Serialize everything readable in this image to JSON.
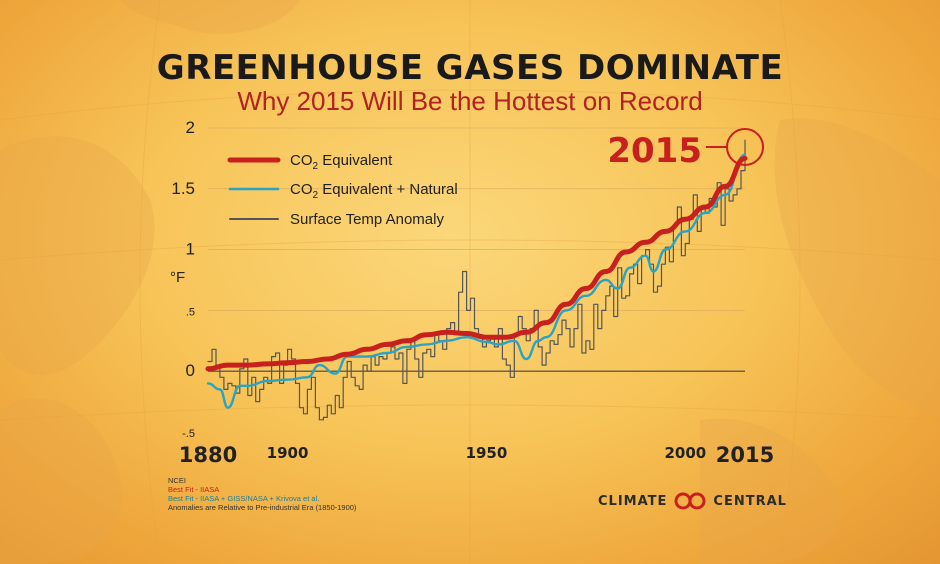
{
  "title": "GREENHOUSE GASES DOMINATE",
  "subtitle": "Why 2015 Will Be the Hottest on Record",
  "colors": {
    "co2": "#c8201e",
    "natural": "#2aa3c4",
    "temp": "#555555",
    "highlight": "#c8201e"
  },
  "sources": {
    "line1": "NCEI",
    "line2": "Best Fit - IIASA",
    "line3": "Best Fit - IIASA + GISS/NASA + Krivova et al.",
    "line4": "Anomalies are Relative to Pre-industrial Era (1850-1900)"
  },
  "brand": {
    "left": "CLIMATE",
    "right": "CENTRAL"
  },
  "chart_data": {
    "type": "line",
    "ylabel": "°F",
    "ylim": [
      -0.5,
      2
    ],
    "xlim": [
      1880,
      2015
    ],
    "yticks": [
      {
        "value": 2,
        "label": "2"
      },
      {
        "value": 1.5,
        "label": "1.5"
      },
      {
        "value": 1,
        "label": "1"
      },
      {
        "value": 0.5,
        "label": ".5"
      },
      {
        "value": 0,
        "label": "0"
      },
      {
        "value": -0.5,
        "label": "-.5"
      }
    ],
    "xticks": [
      {
        "value": 1880,
        "label": "1880"
      },
      {
        "value": 1900,
        "label": "1900"
      },
      {
        "value": 1950,
        "label": "1950"
      },
      {
        "value": 2000,
        "label": "2000"
      },
      {
        "value": 2015,
        "label": "2015"
      }
    ],
    "legend_position": "top-left",
    "annotation": {
      "label": "2015",
      "x": 2015,
      "y": 1.9
    },
    "series": [
      {
        "name": "CO2 Equivalent",
        "name_main": "CO",
        "name_sub": "2",
        "name_rest": " Equivalent",
        "style": "smooth",
        "x": [
          1880,
          1885,
          1890,
          1895,
          1900,
          1905,
          1910,
          1915,
          1920,
          1925,
          1930,
          1935,
          1940,
          1945,
          1950,
          1955,
          1960,
          1965,
          1970,
          1975,
          1980,
          1985,
          1990,
          1995,
          2000,
          2005,
          2010,
          2015
        ],
        "y": [
          0.02,
          0.05,
          0.05,
          0.06,
          0.07,
          0.08,
          0.1,
          0.14,
          0.18,
          0.22,
          0.25,
          0.3,
          0.32,
          0.31,
          0.28,
          0.28,
          0.32,
          0.4,
          0.55,
          0.68,
          0.82,
          0.98,
          1.06,
          1.15,
          1.25,
          1.35,
          1.52,
          1.75
        ]
      },
      {
        "name": "CO2 Equivalent + Natural",
        "name_main": "CO",
        "name_sub": "2",
        "name_rest": " Equivalent + Natural",
        "style": "smooth",
        "x": [
          1880,
          1883,
          1885,
          1888,
          1890,
          1895,
          1900,
          1905,
          1908,
          1912,
          1915,
          1920,
          1925,
          1930,
          1935,
          1940,
          1945,
          1950,
          1953,
          1957,
          1960,
          1963,
          1965,
          1970,
          1975,
          1980,
          1983,
          1986,
          1990,
          1992,
          1995,
          2000,
          2005,
          2010,
          2015
        ],
        "y": [
          -0.1,
          -0.15,
          -0.3,
          -0.12,
          -0.12,
          -0.08,
          -0.07,
          -0.05,
          0.05,
          -0.02,
          0.12,
          0.12,
          0.15,
          0.2,
          0.22,
          0.25,
          0.28,
          0.24,
          0.22,
          0.25,
          0.1,
          0.25,
          0.28,
          0.5,
          0.62,
          0.75,
          0.68,
          0.85,
          0.95,
          0.82,
          1.0,
          1.15,
          1.3,
          1.45,
          1.78
        ]
      },
      {
        "name": "Surface Temp Anomaly",
        "style": "step",
        "x": [
          1880,
          1881,
          1882,
          1883,
          1884,
          1885,
          1886,
          1887,
          1888,
          1889,
          1890,
          1891,
          1892,
          1893,
          1894,
          1895,
          1896,
          1897,
          1898,
          1899,
          1900,
          1901,
          1902,
          1903,
          1904,
          1905,
          1906,
          1907,
          1908,
          1909,
          1910,
          1911,
          1912,
          1913,
          1914,
          1915,
          1916,
          1917,
          1918,
          1919,
          1920,
          1921,
          1922,
          1923,
          1924,
          1925,
          1926,
          1927,
          1928,
          1929,
          1930,
          1931,
          1932,
          1933,
          1934,
          1935,
          1936,
          1937,
          1938,
          1939,
          1940,
          1941,
          1942,
          1943,
          1944,
          1945,
          1946,
          1947,
          1948,
          1949,
          1950,
          1951,
          1952,
          1953,
          1954,
          1955,
          1956,
          1957,
          1958,
          1959,
          1960,
          1961,
          1962,
          1963,
          1964,
          1965,
          1966,
          1967,
          1968,
          1969,
          1970,
          1971,
          1972,
          1973,
          1974,
          1975,
          1976,
          1977,
          1978,
          1979,
          1980,
          1981,
          1982,
          1983,
          1984,
          1985,
          1986,
          1987,
          1988,
          1989,
          1990,
          1991,
          1992,
          1993,
          1994,
          1995,
          1996,
          1997,
          1998,
          1999,
          2000,
          2001,
          2002,
          2003,
          2004,
          2005,
          2006,
          2007,
          2008,
          2009,
          2010,
          2011,
          2012,
          2013,
          2014,
          2015
        ],
        "y": [
          0.08,
          0.18,
          0.05,
          -0.05,
          -0.15,
          -0.1,
          -0.12,
          -0.18,
          0.02,
          0.1,
          -0.2,
          -0.05,
          -0.25,
          -0.15,
          -0.05,
          -0.1,
          0.12,
          0.15,
          -0.1,
          0.05,
          0.18,
          0.1,
          -0.1,
          -0.3,
          -0.35,
          -0.15,
          -0.05,
          -0.3,
          -0.4,
          -0.38,
          -0.28,
          -0.35,
          -0.2,
          -0.3,
          -0.05,
          0.08,
          -0.05,
          -0.12,
          -0.15,
          0.05,
          0.0,
          0.12,
          0.05,
          0.12,
          0.1,
          0.15,
          0.2,
          0.1,
          0.15,
          -0.1,
          0.18,
          0.25,
          0.1,
          -0.05,
          0.15,
          0.18,
          0.12,
          0.3,
          0.25,
          0.18,
          0.35,
          0.4,
          0.3,
          0.65,
          0.82,
          0.5,
          0.6,
          0.35,
          0.3,
          0.2,
          0.25,
          0.28,
          0.2,
          0.35,
          0.1,
          0.05,
          -0.05,
          0.3,
          0.45,
          0.35,
          0.25,
          0.35,
          0.5,
          0.2,
          0.05,
          0.15,
          0.25,
          0.22,
          0.3,
          0.42,
          0.35,
          0.2,
          0.35,
          0.55,
          0.15,
          0.25,
          0.18,
          0.55,
          0.35,
          0.5,
          0.62,
          0.7,
          0.45,
          0.85,
          0.6,
          0.62,
          0.8,
          0.88,
          0.72,
          0.95,
          1.0,
          0.88,
          0.65,
          0.7,
          0.88,
          1.02,
          0.9,
          1.2,
          1.35,
          0.95,
          1.05,
          1.25,
          1.45,
          1.15,
          1.35,
          1.3,
          1.42,
          1.35,
          1.55,
          1.2,
          1.5,
          1.4,
          1.45,
          1.5,
          1.65,
          1.9
        ]
      }
    ]
  }
}
